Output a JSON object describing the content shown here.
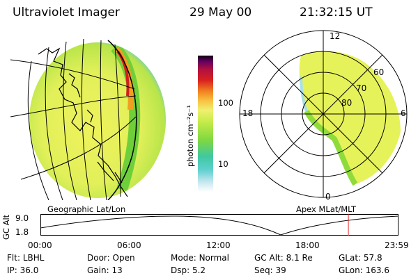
{
  "header": {
    "instrument": "Ultraviolet Imager",
    "date": "29 May 00",
    "time": "21:32:15 UT"
  },
  "colorbar": {
    "unit_label": "photon cm⁻²s⁻¹",
    "tick_100": "100",
    "tick_10": "10"
  },
  "geo_map": {
    "caption": "Geographic Lat/Lon"
  },
  "polar_plot": {
    "caption": "Apex MLat/MLT",
    "mlt_labels": {
      "top": "12",
      "left": "18",
      "right": "6",
      "bottom": "0"
    },
    "lat_labels": {
      "l60": "60",
      "l70": "70",
      "l80": "80"
    }
  },
  "altitude_plot": {
    "axis_title": "GC Alt",
    "y_ticks": [
      "9.0",
      "1.8"
    ],
    "x_ticks": [
      "00:00",
      "06:00",
      "12:00",
      "18:00",
      "23:59"
    ],
    "current_time_fraction": 0.86
  },
  "status": {
    "filter_label": "Flt:",
    "filter_value": "LBHL",
    "door_label": "Door:",
    "door_value": "Open",
    "mode_label": "Mode:",
    "mode_value": "Normal",
    "gc_alt_label": "GC Alt:",
    "gc_alt_value": "8.1 Re",
    "glat_label": "GLat:",
    "glat_value": "57.8",
    "ip_label": "IP:",
    "ip_value": "36.0",
    "gain_label": "Gain:",
    "gain_value": "13",
    "dsp_label": "Dsp:",
    "dsp_value": "5.2",
    "seq_label": "Seq:",
    "seq_value": "39",
    "glon_label": "GLon:",
    "glon_value": "163.6"
  },
  "colors": {
    "low_emission": "#e6f25a",
    "mid_emission": "#8fdb3a",
    "high_emission": "#d21e1e",
    "time_marker": "#e02020"
  }
}
